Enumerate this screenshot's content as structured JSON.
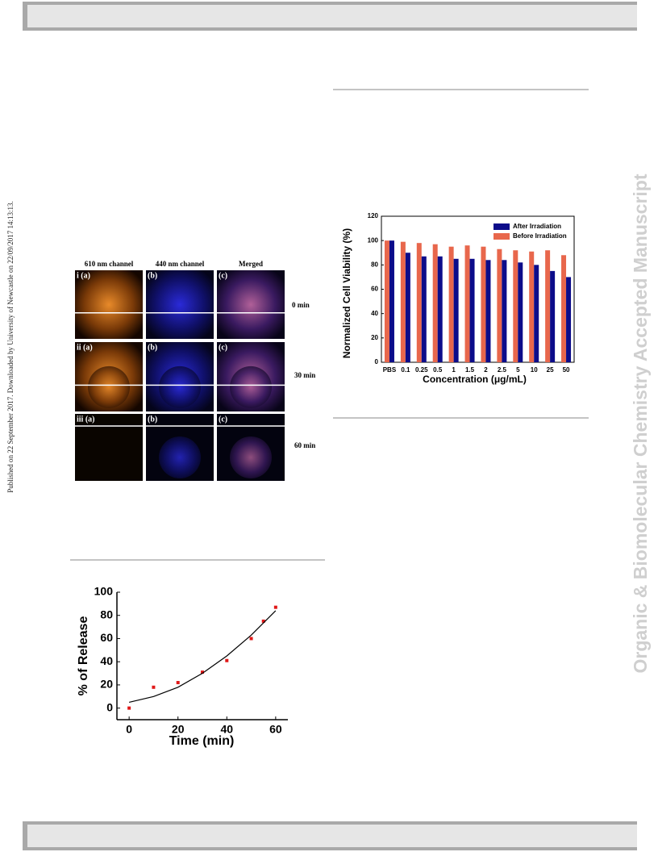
{
  "sidebar": {
    "published": "Published on 22 September 2017. Downloaded by University of Newcastle on 22/09/2017 14:13:13.",
    "watermark": "Organic & Biomolecular Chemistry Accepted Manuscript"
  },
  "micrograph": {
    "column_labels": [
      "610 nm channel",
      "440 nm channel",
      "Merged"
    ],
    "panel_labels": [
      [
        "i (a)",
        "(b)",
        "(c)"
      ],
      [
        "ii (a)",
        "(b)",
        "(c)"
      ],
      [
        "iii (a)",
        "(b)",
        "(c)"
      ]
    ],
    "time_labels": [
      "0 min",
      "30 min",
      "60 min"
    ]
  },
  "chart_data": [
    {
      "type": "bar",
      "ylabel": "Normalized Cell Viability (%)",
      "xlabel": "Concentration (μg/mL)",
      "categories": [
        "PBS",
        "0.1",
        "0.25",
        "0.5",
        "1",
        "1.5",
        "2",
        "2.5",
        "5",
        "10",
        "25",
        "50"
      ],
      "series": [
        {
          "name": "After Irradiation",
          "color": "#0c0c8a",
          "values": [
            100,
            90,
            87,
            87,
            85,
            85,
            84,
            84,
            82,
            80,
            75,
            70
          ]
        },
        {
          "name": "Before Irradiation",
          "color": "#e8674c",
          "values": [
            100,
            99,
            98,
            97,
            95,
            96,
            95,
            93,
            92,
            91,
            92,
            88
          ]
        }
      ],
      "ylim": [
        0,
        120
      ],
      "yticks": [
        0,
        20,
        40,
        60,
        80,
        100,
        120
      ],
      "legend": "top-right"
    },
    {
      "type": "scatter",
      "ylabel": "% of Release",
      "xlabel": "Time (min)",
      "series": [
        {
          "color": "#e01818",
          "mode": "markers",
          "x": [
            0,
            10,
            20,
            30,
            40,
            50,
            55,
            60
          ],
          "values": [
            0,
            18,
            22,
            31,
            41,
            60,
            75,
            87
          ]
        },
        {
          "color": "#000000",
          "mode": "line",
          "x": [
            0,
            10,
            20,
            30,
            40,
            50,
            60
          ],
          "values": [
            5,
            10,
            18,
            30,
            45,
            63,
            84
          ]
        }
      ],
      "xlim": [
        -5,
        65
      ],
      "xticks": [
        0,
        20,
        40,
        60
      ],
      "ylim": [
        -10,
        100
      ],
      "yticks": [
        0,
        20,
        40,
        60,
        80,
        100
      ]
    }
  ]
}
